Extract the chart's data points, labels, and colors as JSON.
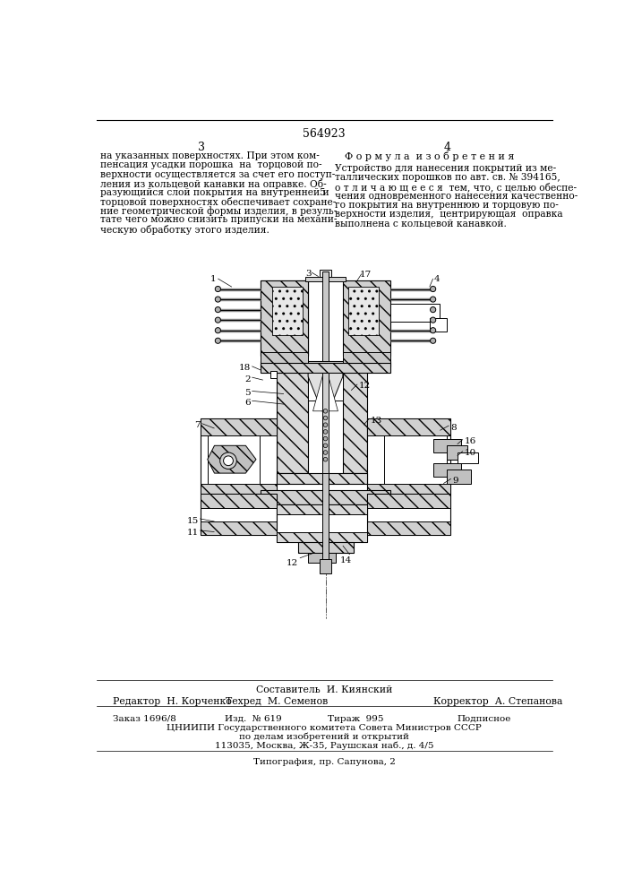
{
  "page_number_center": "564923",
  "page_left": "3",
  "page_right": "4",
  "left_text": [
    "на указанных поверхностях. При этом ком-",
    "пенсация усадки порошка  на  торцовой по-",
    "верхности осуществляется за счет его поступ-",
    "ления из кольцевой канавки на оправке. Об-",
    "разующийся слой покрытия на внутренней и",
    "торцовой поверхностях обеспечивает сохране-",
    "ние геометрической формы изделия, в резуль-",
    "тате чего можно снизить припуски на механи-",
    "ческую обработку этого изделия."
  ],
  "line_number_5": "5",
  "right_title": "Ф о р м у л а  и з о б р е т е н и я",
  "right_text": [
    "Устройство для нанесения покрытий из ме-",
    "таллических порошков по авт. св. № 394165,",
    "о т л и ч а ю щ е е с я  тем, что, с целью обеспе-",
    "чения одновременного нанесения качественно-",
    "го покрытия на внутреннюю и торцовую по-",
    "верхности изделия,  центрирующая  оправка",
    "выполнена с кольцевой канавкой."
  ],
  "footer_compiler": "Составитель  И. Киянский",
  "footer_editor": "Редактор  Н. Корченко",
  "footer_tech": "Техред  М. Семенов",
  "footer_corrector": "Корректор  А. Степанова",
  "footer_order": "Заказ 1696/8",
  "footer_izd": "Изд.  № 619",
  "footer_tirazh": "Тираж  995",
  "footer_podpisnoe": "Подписное",
  "footer_org1": "ЦНИИПИ Государственного комитета Совета Министров СССР",
  "footer_org2": "по делам изобретений и открытий",
  "footer_org3": "113035, Москва, Ж-35, Раушская наб., д. 4/5",
  "footer_typo": "Типография, пр. Сапунова, 2",
  "bg_color": "#ffffff"
}
